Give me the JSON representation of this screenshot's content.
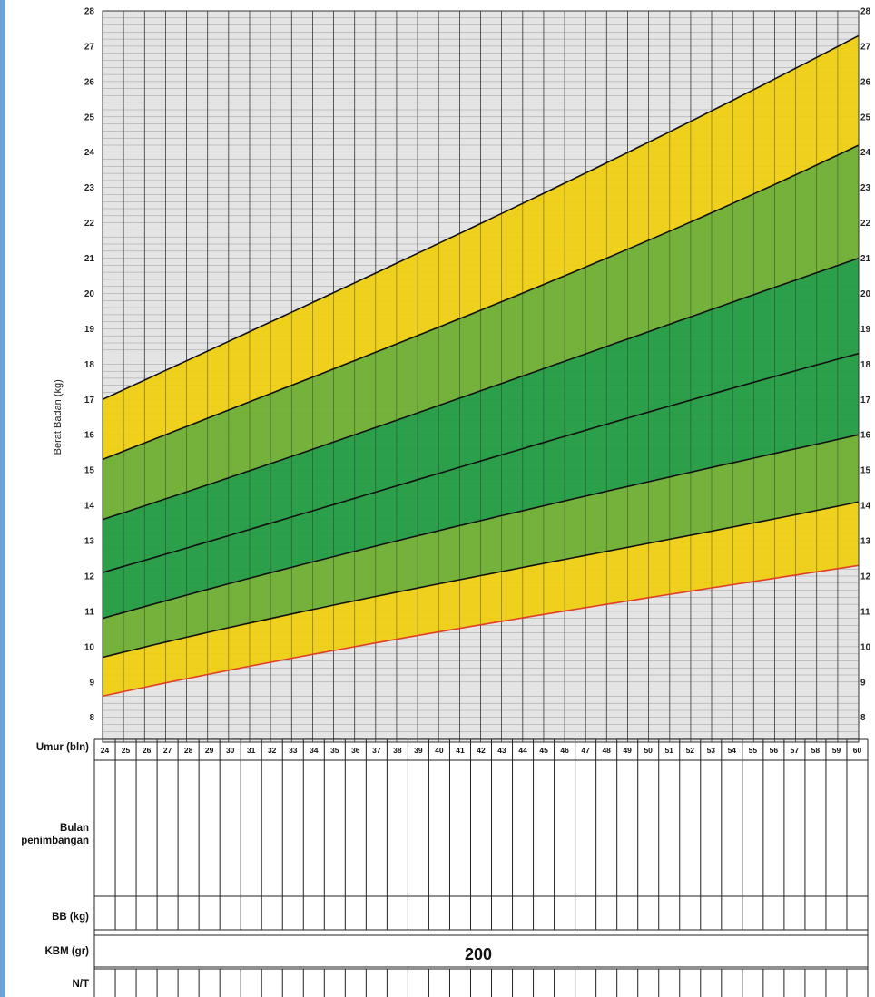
{
  "colors": {
    "yellow": "#f0cf0e",
    "light_green": "#6cae2f",
    "dark_green": "#1e9a3e",
    "grid_bg": "#e4e4e4",
    "grid_line": "#9a9a9a",
    "low_line": "#e0402a"
  },
  "chart_data": {
    "type": "area",
    "y_axis_label": "Berat Badan (kg)",
    "x_range": [
      24,
      60
    ],
    "ylim": [
      7.3,
      28
    ],
    "y_ticks": [
      "8",
      "9",
      "10",
      "11",
      "12",
      "13",
      "14",
      "15",
      "16",
      "17",
      "18",
      "19",
      "20",
      "21",
      "22",
      "23",
      "24",
      "25",
      "26",
      "27",
      "28"
    ],
    "x_ticks": [
      "24",
      "25",
      "26",
      "27",
      "28",
      "29",
      "30",
      "31",
      "32",
      "33",
      "34",
      "35",
      "36",
      "37",
      "38",
      "39",
      "40",
      "41",
      "42",
      "43",
      "44",
      "45",
      "46",
      "47",
      "48",
      "49",
      "50",
      "51",
      "52",
      "53",
      "54",
      "55",
      "56",
      "57",
      "58",
      "59",
      "60"
    ],
    "curves": [
      {
        "at24": 8.6,
        "at36": 10.0,
        "at48": 11.2,
        "at60": 12.3
      },
      {
        "at24": 9.7,
        "at36": 11.3,
        "at48": 12.7,
        "at60": 14.1
      },
      {
        "at24": 10.8,
        "at36": 12.7,
        "at48": 14.4,
        "at60": 16.0
      },
      {
        "at24": 12.1,
        "at36": 14.2,
        "at48": 16.3,
        "at60": 18.3
      },
      {
        "at24": 13.6,
        "at36": 16.0,
        "at48": 18.5,
        "at60": 21.0
      },
      {
        "at24": 15.3,
        "at36": 18.1,
        "at48": 21.0,
        "at60": 24.2
      },
      {
        "at24": 17.0,
        "at36": 20.3,
        "at48": 23.7,
        "at60": 27.3
      }
    ],
    "bands": [
      "yellow",
      "light_green",
      "dark_green",
      "dark_green",
      "light_green",
      "yellow"
    ]
  },
  "table": {
    "age_label": "Umur (bln)",
    "weigh_label_1": "Bulan",
    "weigh_label_2": "penimbangan",
    "bb_label": "BB (kg)",
    "kbm_label": "KBM (gr)",
    "kbm_value": "200",
    "nt_label": "N/T"
  }
}
